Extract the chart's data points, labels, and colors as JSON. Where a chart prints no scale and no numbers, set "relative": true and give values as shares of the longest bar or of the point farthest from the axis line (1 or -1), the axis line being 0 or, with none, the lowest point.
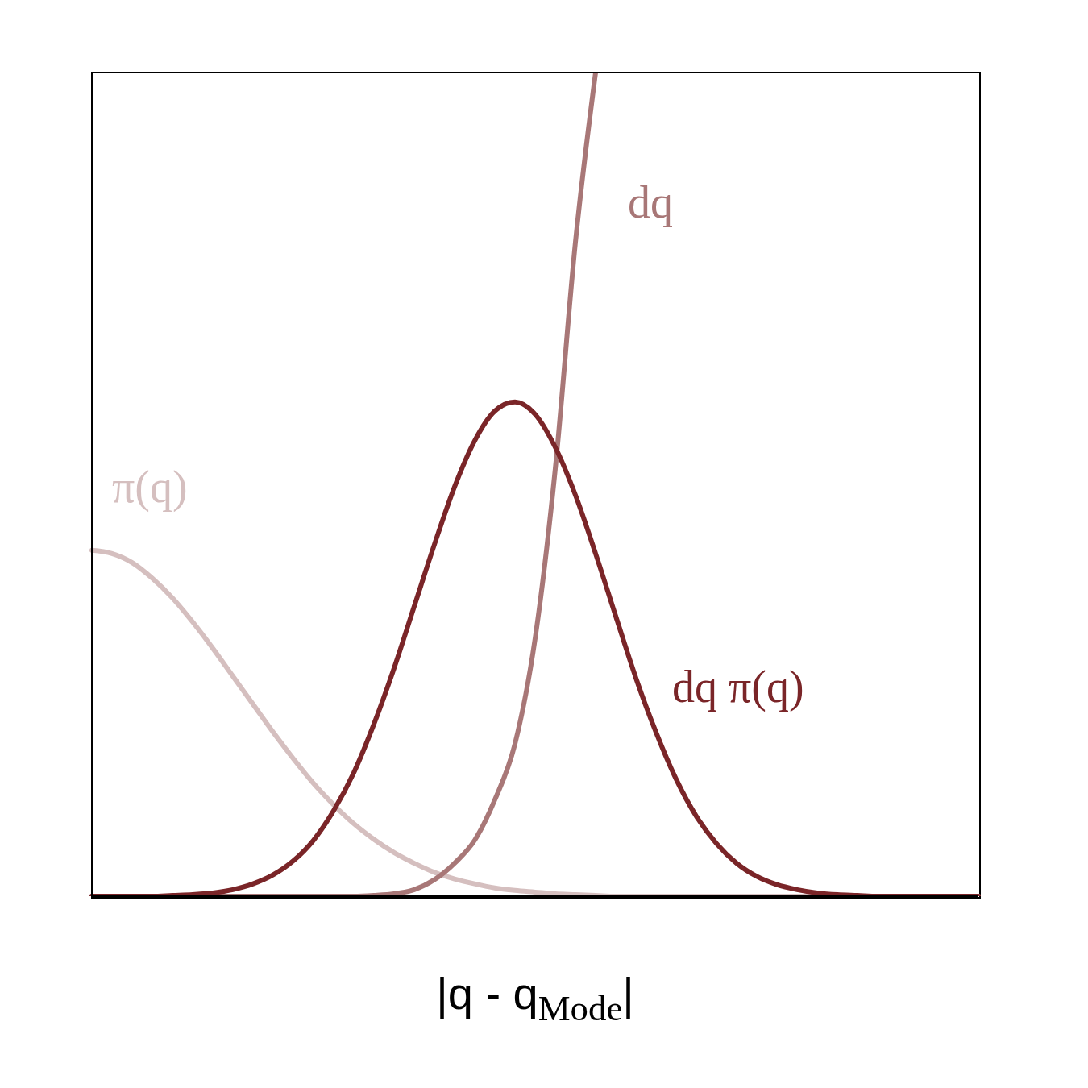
{
  "chart_data": {
    "type": "line",
    "relative": true,
    "xlabel": "|q - q$_{Mode}$|",
    "categories": [
      null,
      null,
      null,
      null,
      null,
      null,
      null,
      null,
      null,
      null,
      null,
      null,
      null,
      null,
      null,
      null,
      null,
      null,
      null,
      null,
      null,
      null,
      null,
      null,
      null,
      null,
      null,
      null,
      null,
      null,
      null,
      null,
      null,
      null,
      null,
      null,
      null,
      null,
      null,
      null,
      null,
      null,
      null,
      null,
      null
    ],
    "series": [
      {
        "name": "π(q)",
        "color": "#d5bfbf",
        "values": [
          0.42,
          0.416,
          0.405,
          0.386,
          0.362,
          0.333,
          0.301,
          0.267,
          0.233,
          0.199,
          0.167,
          0.137,
          0.111,
          0.088,
          0.069,
          0.053,
          0.04,
          0.029,
          0.021,
          0.015,
          0.01,
          0.007,
          0.005,
          0.003,
          0.002,
          0.001,
          0,
          0,
          0,
          0,
          0,
          0,
          0,
          0,
          0,
          0,
          0,
          0,
          0,
          0,
          0,
          0,
          0,
          0,
          0
        ]
      },
      {
        "name": "dq",
        "color": "#a87777",
        "values": [
          0,
          0,
          0,
          0,
          0,
          0,
          0,
          0,
          0,
          0,
          0,
          0,
          0,
          0,
          0.001,
          0.003,
          0.008,
          0.02,
          0.04,
          0.068,
          0.117,
          0.185,
          0.313,
          0.519,
          0.794,
          1,
          null,
          null,
          null,
          null,
          null,
          null,
          null,
          null,
          null,
          null,
          null,
          null,
          null,
          null,
          null,
          null,
          null,
          null,
          null
        ]
      },
      {
        "name": "dq π(q)",
        "color": "#7a2528",
        "values": [
          0,
          0,
          0,
          0,
          0.001,
          0.002,
          0.004,
          0.008,
          0.015,
          0.026,
          0.043,
          0.068,
          0.104,
          0.15,
          0.209,
          0.277,
          0.352,
          0.427,
          0.497,
          0.553,
          0.589,
          0.6,
          0.585,
          0.545,
          0.487,
          0.416,
          0.34,
          0.265,
          0.199,
          0.142,
          0.097,
          0.064,
          0.04,
          0.024,
          0.014,
          0.008,
          0.004,
          0.002,
          0.001,
          0,
          0,
          0,
          0,
          0,
          0
        ]
      }
    ]
  }
}
